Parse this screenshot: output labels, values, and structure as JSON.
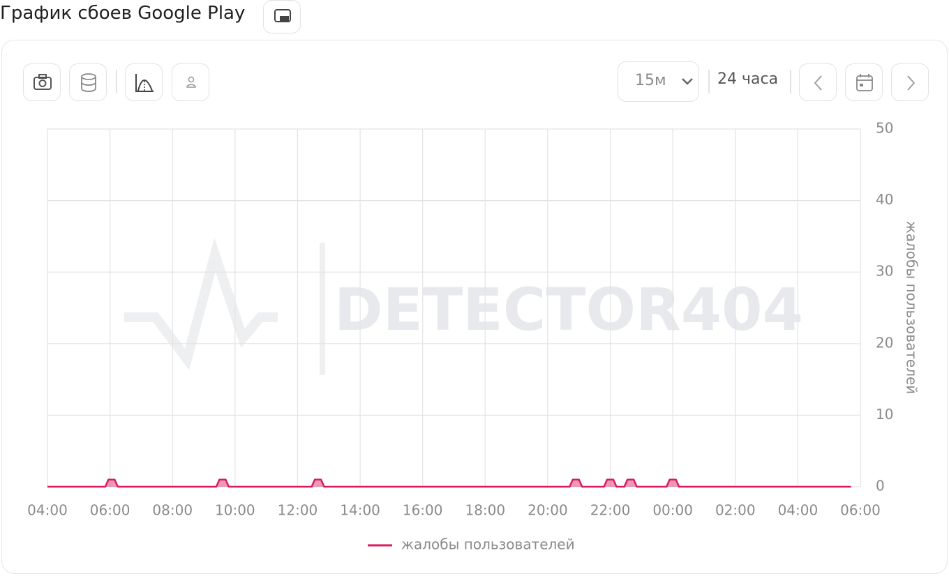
{
  "header": {
    "title": "График сбоев Google Play"
  },
  "toolbar": {
    "interval": "15м",
    "range": "24 часа"
  },
  "chart_data": {
    "type": "line",
    "watermark": "DETECTOR404",
    "y_label": "жалобы пользователей",
    "x": [
      4,
      5.85,
      5.95,
      6.15,
      6.25,
      9.4,
      9.5,
      9.7,
      9.8,
      12.45,
      12.55,
      12.75,
      12.85,
      20.7,
      20.8,
      21.0,
      21.1,
      21.8,
      21.9,
      22.1,
      22.2,
      22.45,
      22.55,
      22.75,
      22.85,
      23.8,
      23.9,
      24.1,
      24.2,
      29.7
    ],
    "series": [
      {
        "name": "жалобы пользователей",
        "color": "#d81b60",
        "values": [
          0,
          0,
          1,
          1,
          0,
          0,
          1,
          1,
          0,
          0,
          1,
          1,
          0,
          0,
          1,
          1,
          0,
          0,
          1,
          1,
          0,
          0,
          1,
          1,
          0,
          0,
          1,
          1,
          0,
          0
        ]
      }
    ],
    "xlim": [
      4,
      30
    ],
    "xticks": [
      {
        "value": 4,
        "label": "04:00"
      },
      {
        "value": 6,
        "label": "06:00"
      },
      {
        "value": 8,
        "label": "08:00"
      },
      {
        "value": 10,
        "label": "10:00"
      },
      {
        "value": 12,
        "label": "12:00"
      },
      {
        "value": 14,
        "label": "14:00"
      },
      {
        "value": 16,
        "label": "16:00"
      },
      {
        "value": 18,
        "label": "18:00"
      },
      {
        "value": 20,
        "label": "20:00"
      },
      {
        "value": 22,
        "label": "22:00"
      },
      {
        "value": 24,
        "label": "00:00"
      },
      {
        "value": 26,
        "label": "02:00"
      },
      {
        "value": 28,
        "label": "04:00"
      },
      {
        "value": 30,
        "label": "06:00"
      }
    ],
    "ylim": [
      0,
      50
    ],
    "yticks": [
      0,
      10,
      20,
      30,
      40,
      50
    ],
    "grid": true,
    "y_axis_side": "right",
    "legend": "bottom"
  }
}
